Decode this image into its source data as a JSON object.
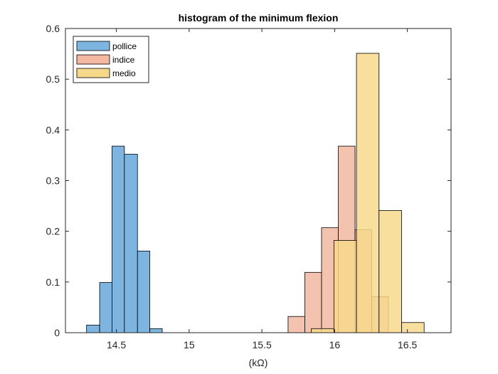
{
  "chart_data": {
    "type": "bar",
    "title": "histogram of the minimum flexion",
    "xlabel": "(kΩ)",
    "ylabel": "",
    "xlim": [
      14.15,
      16.8
    ],
    "ylim": [
      0,
      0.6
    ],
    "xticks": [
      14.5,
      15,
      15.5,
      16,
      16.5
    ],
    "yticks": [
      0,
      0.1,
      0.2,
      0.3,
      0.4,
      0.5,
      0.6
    ],
    "grid": false,
    "legend_position": "top-left",
    "series": [
      {
        "name": "pollice",
        "color": "#7DB5E0",
        "bins": [
          {
            "x0": 14.295,
            "x1": 14.385,
            "value": 0.015
          },
          {
            "x0": 14.385,
            "x1": 14.47,
            "value": 0.099
          },
          {
            "x0": 14.47,
            "x1": 14.555,
            "value": 0.368
          },
          {
            "x0": 14.555,
            "x1": 14.645,
            "value": 0.352
          },
          {
            "x0": 14.645,
            "x1": 14.73,
            "value": 0.161
          },
          {
            "x0": 14.73,
            "x1": 14.815,
            "value": 0.008
          }
        ]
      },
      {
        "name": "indice",
        "color": "#F2B8A2",
        "bins": [
          {
            "x0": 15.68,
            "x1": 15.795,
            "value": 0.032
          },
          {
            "x0": 15.795,
            "x1": 15.91,
            "value": 0.119
          },
          {
            "x0": 15.91,
            "x1": 16.025,
            "value": 0.207
          },
          {
            "x0": 16.025,
            "x1": 16.14,
            "value": 0.368
          },
          {
            "x0": 16.14,
            "x1": 16.255,
            "value": 0.203
          },
          {
            "x0": 16.255,
            "x1": 16.37,
            "value": 0.071
          }
        ]
      },
      {
        "name": "medio",
        "color": "#F7D98C",
        "bins": [
          {
            "x0": 15.84,
            "x1": 15.995,
            "value": 0.008
          },
          {
            "x0": 15.995,
            "x1": 16.15,
            "value": 0.182
          },
          {
            "x0": 16.15,
            "x1": 16.305,
            "value": 0.551
          },
          {
            "x0": 16.305,
            "x1": 16.46,
            "value": 0.241
          },
          {
            "x0": 16.46,
            "x1": 16.615,
            "value": 0.02
          }
        ]
      }
    ]
  }
}
